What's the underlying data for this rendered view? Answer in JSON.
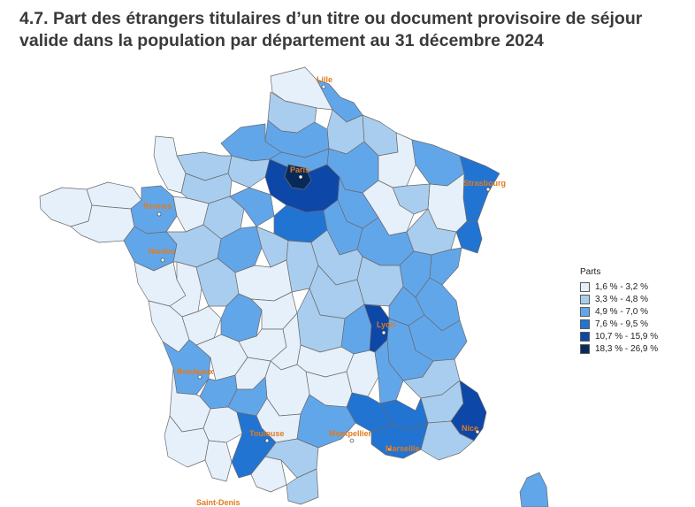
{
  "title": "4.7. Part des étrangers titulaires d’un titre ou document provisoire de séjour valide dans la population par département au 31 décembre 2024",
  "legend": {
    "title": "Parts",
    "classes": [
      {
        "label": "1,6 % - 3,2 %",
        "color": "#e6f0fa"
      },
      {
        "label": "3,3 % - 4,8 %",
        "color": "#a9cdee"
      },
      {
        "label": "4,9 % - 7,0 %",
        "color": "#62a6ea"
      },
      {
        "label": "7,6 % - 9,5 %",
        "color": "#2274d3"
      },
      {
        "label": "10,7 % - 15,9 %",
        "color": "#0d47a8"
      },
      {
        "label": "18,3 % - 26,9 %",
        "color": "#082a5a"
      }
    ]
  },
  "cities": [
    {
      "name": "Lille",
      "class": 0
    },
    {
      "name": "Paris",
      "class": 5
    },
    {
      "name": "Strasbourg",
      "class": 3
    },
    {
      "name": "Rennes",
      "class": 2
    },
    {
      "name": "Nantes",
      "class": 2
    },
    {
      "name": "Lyon",
      "class": 4
    },
    {
      "name": "Bordeaux",
      "class": 2
    },
    {
      "name": "Toulouse",
      "class": 3
    },
    {
      "name": "Montpellier",
      "class": 2
    },
    {
      "name": "Marseille",
      "class": 3
    },
    {
      "name": "Nice",
      "class": 4
    },
    {
      "name": "Saint-Denis",
      "class": 0
    }
  ]
}
